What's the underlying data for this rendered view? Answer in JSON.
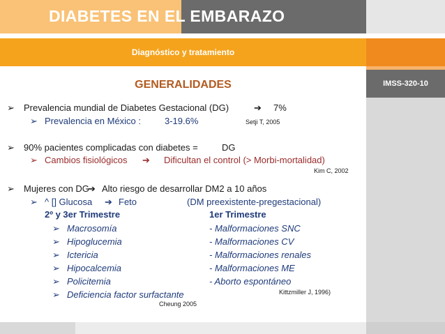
{
  "header": {
    "title": "DIABETES EN EL EMBARAZO",
    "subtitle": "Diagnóstico y tratamiento"
  },
  "sidebar": {
    "code": "IMSS-320-10"
  },
  "section": {
    "heading": "GENERALIDADES"
  },
  "bullets": {
    "b1": {
      "text": "Prevalencia mundial de Diabetes Gestacional (DG)",
      "value": "7%"
    },
    "b1_sub": {
      "label": "Prevalencia en México :",
      "value": "3-19.6%",
      "ref": "Setji T, 2005"
    },
    "b2": {
      "label": "90% pacientes complicadas con diabetes =",
      "value": "DG"
    },
    "b2_sub": {
      "label": "Cambios fisiológicos",
      "value": "Dificultan el control (> Morbi-mortalidad)",
      "ref": "Kim C, 2002"
    },
    "b3": {
      "label": "Mujeres con DG",
      "value": "Alto riesgo de desarrollar DM2 a 10 años"
    },
    "b3_sub": {
      "label": "^ [] Glucosa",
      "mid": "Feto",
      "value": "(DM preexistente-pregestacional)"
    }
  },
  "trimesters": {
    "left_header": "2º y 3er Trimestre",
    "right_header": "1er Trimestre",
    "left_items": [
      "Macrosomía",
      "Hipoglucemia",
      "Ictericia",
      "Hipocalcemia",
      "Policitemia",
      "Deficiencia factor surfactante"
    ],
    "right_items": [
      "- Malformaciones SNC",
      "- Malformaciones CV",
      "- Malformaciones renales",
      "- Malformaciones ME",
      "- Aborto espontáneo"
    ],
    "ref_right": "Kittzmiller J, 1996)",
    "ref_left": "Cheung 2005"
  },
  "icons": {
    "bullet": "arrowhead-bullet-icon",
    "arrow": "right-arrow-icon"
  },
  "colors": {
    "blue": "#1f3b7a",
    "heading": "#b35a1f",
    "orange": "#f5a31d"
  }
}
